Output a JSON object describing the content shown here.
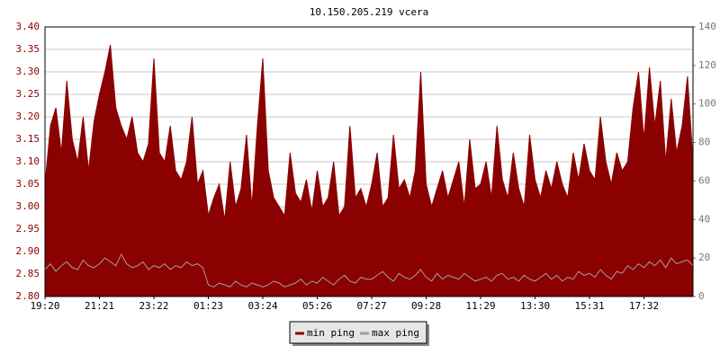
{
  "chart_data": {
    "type": "line",
    "title": "10.150.205.219 vcera",
    "categories": [
      "19:20",
      null,
      null,
      null,
      null,
      null,
      null,
      null,
      null,
      null,
      "21:21",
      null,
      null,
      null,
      null,
      null,
      null,
      null,
      null,
      null,
      "23:22",
      null,
      null,
      null,
      null,
      null,
      null,
      null,
      null,
      null,
      "01:23",
      null,
      null,
      null,
      null,
      null,
      null,
      null,
      null,
      null,
      "03:24",
      null,
      null,
      null,
      null,
      null,
      null,
      null,
      null,
      null,
      "05:26",
      null,
      null,
      null,
      null,
      null,
      null,
      null,
      null,
      null,
      "07:27",
      null,
      null,
      null,
      null,
      null,
      null,
      null,
      null,
      null,
      "09:28",
      null,
      null,
      null,
      null,
      null,
      null,
      null,
      null,
      null,
      "11:29",
      null,
      null,
      null,
      null,
      null,
      null,
      null,
      null,
      null,
      "13:30",
      null,
      null,
      null,
      null,
      null,
      null,
      null,
      null,
      null,
      "15:31",
      null,
      null,
      null,
      null,
      null,
      null,
      null,
      null,
      null,
      "17:32",
      null,
      null,
      null,
      null,
      null,
      null,
      null,
      null,
      null
    ],
    "series": [
      {
        "name": "min ping",
        "color": "#8b0000",
        "fill": true,
        "axis": "y",
        "values": [
          3.05,
          3.18,
          3.22,
          3.12,
          3.28,
          3.15,
          3.1,
          3.2,
          3.08,
          3.19,
          3.25,
          3.3,
          3.36,
          3.22,
          3.18,
          3.15,
          3.2,
          3.12,
          3.1,
          3.14,
          3.33,
          3.12,
          3.1,
          3.18,
          3.08,
          3.06,
          3.1,
          3.2,
          3.05,
          3.08,
          2.98,
          3.02,
          3.05,
          2.97,
          3.1,
          3.0,
          3.04,
          3.16,
          3.0,
          3.18,
          3.33,
          3.08,
          3.02,
          3.0,
          2.98,
          3.12,
          3.03,
          3.01,
          3.06,
          2.99,
          3.08,
          3.0,
          3.02,
          3.1,
          2.98,
          3.0,
          3.18,
          3.02,
          3.04,
          3.0,
          3.05,
          3.12,
          3.0,
          3.02,
          3.16,
          3.04,
          3.06,
          3.02,
          3.08,
          3.3,
          3.05,
          3.0,
          3.04,
          3.08,
          3.02,
          3.06,
          3.1,
          3.0,
          3.15,
          3.04,
          3.05,
          3.1,
          3.02,
          3.18,
          3.06,
          3.02,
          3.12,
          3.04,
          3.0,
          3.16,
          3.06,
          3.02,
          3.08,
          3.04,
          3.1,
          3.05,
          3.02,
          3.12,
          3.06,
          3.14,
          3.08,
          3.06,
          3.2,
          3.1,
          3.05,
          3.12,
          3.08,
          3.1,
          3.22,
          3.3,
          3.15,
          3.31,
          3.18,
          3.28,
          3.1,
          3.24,
          3.12,
          3.18,
          3.29,
          3.1
        ]
      },
      {
        "name": "max ping",
        "color": "#a0a0a0",
        "fill": false,
        "axis": "y2",
        "values": [
          14,
          17,
          13,
          16,
          18,
          15,
          14,
          19,
          16,
          15,
          17,
          20,
          18,
          16,
          22,
          17,
          15,
          16,
          18,
          14,
          16,
          15,
          17,
          14,
          16,
          15,
          18,
          16,
          17,
          15,
          6,
          5,
          7,
          6,
          5,
          8,
          6,
          5,
          7,
          6,
          5,
          6,
          8,
          7,
          5,
          6,
          7,
          9,
          6,
          8,
          7,
          10,
          8,
          6,
          9,
          11,
          8,
          7,
          10,
          9,
          9,
          11,
          13,
          10,
          8,
          12,
          10,
          9,
          11,
          14,
          10,
          8,
          12,
          9,
          11,
          10,
          9,
          12,
          10,
          8,
          9,
          10,
          8,
          11,
          12,
          9,
          10,
          8,
          11,
          9,
          8,
          10,
          12,
          9,
          11,
          8,
          10,
          9,
          13,
          11,
          12,
          10,
          14,
          11,
          9,
          13,
          12,
          16,
          14,
          17,
          15,
          18,
          16,
          19,
          15,
          20,
          17,
          18,
          19,
          16
        ]
      }
    ],
    "ylim": [
      2.8,
      3.4
    ],
    "yticks": [
      {
        "value": 2.8,
        "label": "2.80"
      },
      {
        "value": 2.85,
        "label": "2.85"
      },
      {
        "value": 2.9,
        "label": "2.90"
      },
      {
        "value": 2.95,
        "label": "2.95"
      },
      {
        "value": 3.0,
        "label": "3.00"
      },
      {
        "value": 3.05,
        "label": "3.05"
      },
      {
        "value": 3.1,
        "label": "3.10"
      },
      {
        "value": 3.15,
        "label": "3.15"
      },
      {
        "value": 3.2,
        "label": "3.20"
      },
      {
        "value": 3.25,
        "label": "3.25"
      },
      {
        "value": 3.3,
        "label": "3.30"
      },
      {
        "value": 3.35,
        "label": "3.35"
      },
      {
        "value": 3.4,
        "label": "3.40"
      }
    ],
    "y2lim": [
      0,
      140
    ],
    "y2ticks": [
      0,
      20,
      40,
      60,
      80,
      100,
      120,
      140
    ],
    "grid": true
  }
}
